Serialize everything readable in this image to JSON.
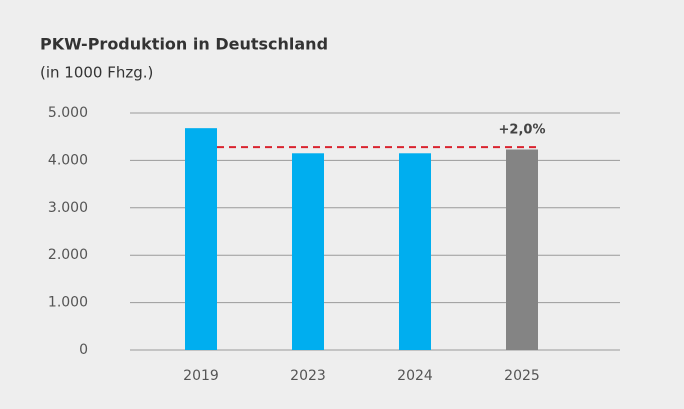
{
  "chart_data": {
    "type": "bar",
    "title": "PKW-Produktion in Deutschland",
    "subtitle": "(in 1000 Fhzg.)",
    "categories": [
      "2019",
      "2023",
      "2024",
      "2025"
    ],
    "values": [
      4680,
      4150,
      4150,
      4230
    ],
    "colors": [
      "#00aeef",
      "#00aeef",
      "#00aeef",
      "#848484"
    ],
    "reference_line": 4280,
    "reference_color": "#d9232e",
    "annotation": "+2,0%",
    "ylim": [
      0,
      5000
    ],
    "yticks": [
      0,
      {
        "value": 1000,
        "label": "1.000"
      },
      {
        "value": 2000,
        "label": "2.000"
      },
      {
        "value": 3000,
        "label": "3.000"
      },
      {
        "value": 4000,
        "label": "4.000"
      },
      {
        "value": 5000,
        "label": "5.000"
      }
    ],
    "grid": true
  }
}
